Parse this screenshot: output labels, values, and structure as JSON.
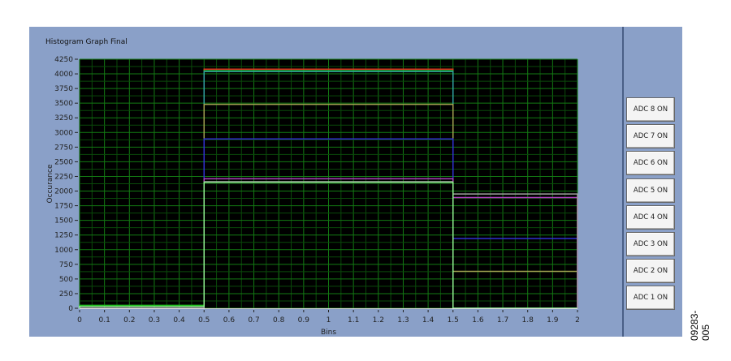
{
  "panel": {
    "title": "Histogram Graph Final"
  },
  "buttons": [
    "ADC 8 ON",
    "ADC 7 ON",
    "ADC 6 ON",
    "ADC 5 ON",
    "ADC 4 ON",
    "ADC 3 ON",
    "ADC 2 ON",
    "ADC 1 ON"
  ],
  "figure_id": "09283-005",
  "chart_data": {
    "type": "line",
    "title": "Histogram Graph Final",
    "xlabel": "Bins",
    "ylabel": "Occurance",
    "xlim": [
      0,
      2
    ],
    "ylim": [
      0,
      4250
    ],
    "xticks": [
      "0",
      "0.1",
      "0.2",
      "0.3",
      "0.4",
      "0.5",
      "0.6",
      "0.7",
      "0.8",
      "0.9",
      "1",
      "1.1",
      "1.2",
      "1.3",
      "1.4",
      "1.5",
      "1.6",
      "1.7",
      "1.8",
      "1.9",
      "2"
    ],
    "yticks": [
      "0",
      "250",
      "500",
      "750",
      "1000",
      "1250",
      "1500",
      "1750",
      "2000",
      "2250",
      "2500",
      "2750",
      "3000",
      "3250",
      "3500",
      "3750",
      "4000",
      "4250"
    ],
    "grid": true,
    "bin_edges": [
      0,
      0.5,
      1.5,
      2
    ],
    "series": [
      {
        "color": "#e03020",
        "values": [
          0,
          4080,
          0
        ]
      },
      {
        "color": "#20c020",
        "values": [
          50,
          4055,
          0
        ]
      },
      {
        "color": "#30a0a0",
        "values": [
          0,
          4040,
          0
        ]
      },
      {
        "color": "#a0a050",
        "values": [
          0,
          3480,
          630
        ]
      },
      {
        "color": "#3030d0",
        "values": [
          0,
          2890,
          1190
        ]
      },
      {
        "color": "#b040c0",
        "values": [
          0,
          2210,
          1890
        ]
      },
      {
        "color": "#a0a0a0",
        "values": [
          0,
          2160,
          1950
        ]
      },
      {
        "color": "#90f090",
        "values": [
          30,
          2150,
          0
        ]
      }
    ]
  }
}
